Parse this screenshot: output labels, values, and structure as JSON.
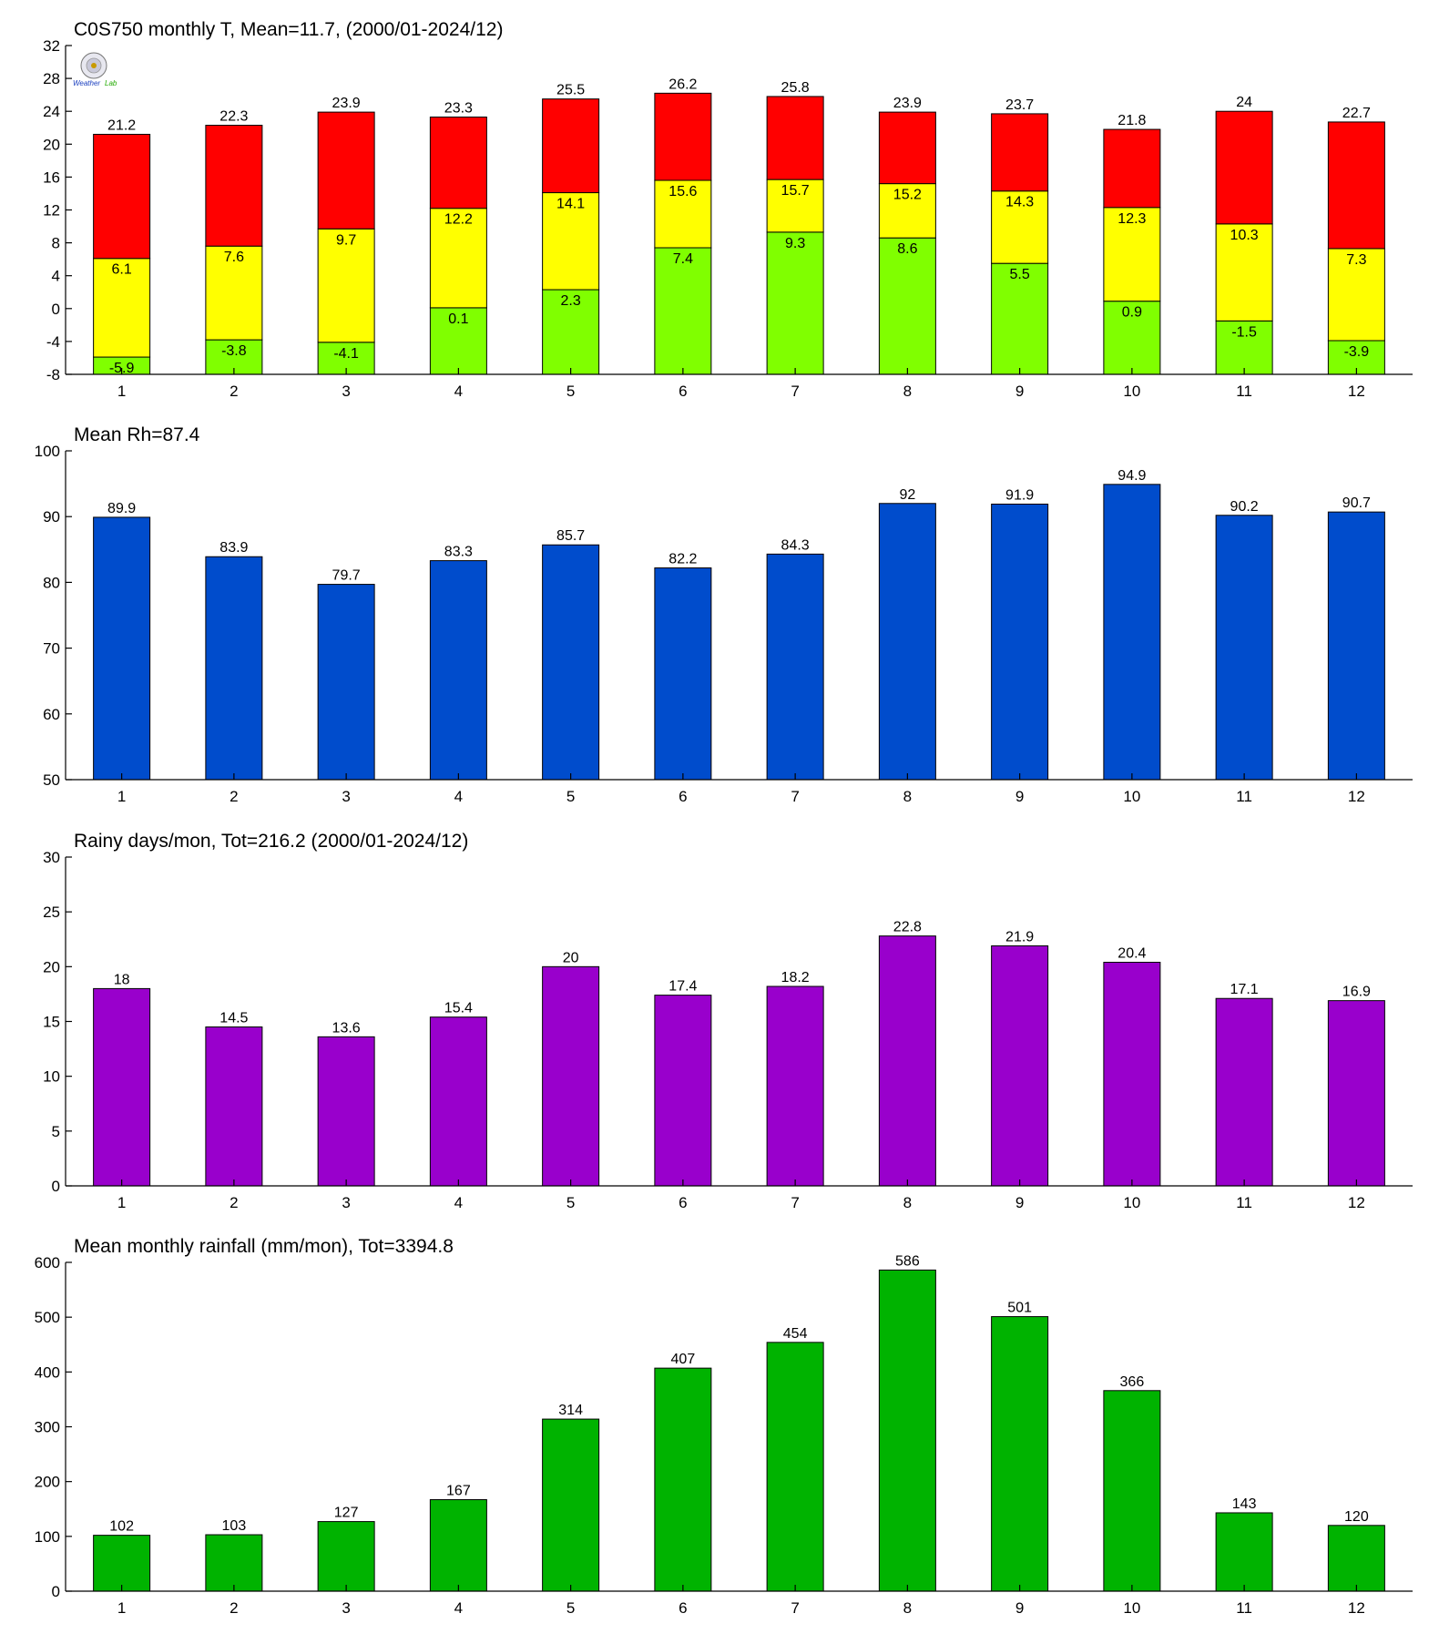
{
  "chart_data": [
    {
      "type": "bar",
      "subtype": "stacked-range",
      "title": "C0S750 monthly T, Mean=11.7, (2000/01-2024/12)",
      "categories": [
        "1",
        "2",
        "3",
        "4",
        "5",
        "6",
        "7",
        "8",
        "9",
        "10",
        "11",
        "12"
      ],
      "ylim": [
        -8,
        32
      ],
      "yticks": [
        -8,
        -4,
        0,
        4,
        8,
        12,
        16,
        20,
        24,
        28,
        32
      ],
      "series": [
        {
          "color": "#80ff00",
          "values": [
            -5.9,
            -3.8,
            -4.1,
            0.1,
            2.3,
            7.4,
            9.3,
            8.6,
            5.5,
            0.9,
            -1.5,
            -3.9
          ]
        },
        {
          "color": "#ffff00",
          "values": [
            6.1,
            7.6,
            9.7,
            12.2,
            14.1,
            15.6,
            15.7,
            15.2,
            14.3,
            12.3,
            10.3,
            7.3
          ]
        },
        {
          "color": "#ff0000",
          "values": [
            21.2,
            22.3,
            23.9,
            23.3,
            25.5,
            26.2,
            25.8,
            23.9,
            23.7,
            21.8,
            24,
            22.7
          ]
        }
      ],
      "labels": {
        "min": [
          "-5.9",
          "-3.8",
          "-4.1",
          "0.1",
          "2.3",
          "7.4",
          "9.3",
          "8.6",
          "5.5",
          "0.9",
          "-1.5",
          "-3.9"
        ],
        "mean": [
          "6.1",
          "7.6",
          "9.7",
          "12.2",
          "14.1",
          "15.6",
          "15.7",
          "15.2",
          "14.3",
          "12.3",
          "10.3",
          "7.3"
        ],
        "max": [
          "21.2",
          "22.3",
          "23.9",
          "23.3",
          "25.5",
          "26.2",
          "25.8",
          "23.9",
          "23.7",
          "21.8",
          "24",
          "22.7"
        ]
      },
      "grid": false,
      "logo": {
        "line1": "Weather",
        "line2": "Lab"
      }
    },
    {
      "type": "bar",
      "title": "Mean Rh=87.4",
      "categories": [
        "1",
        "2",
        "3",
        "4",
        "5",
        "6",
        "7",
        "8",
        "9",
        "10",
        "11",
        "12"
      ],
      "values": [
        89.9,
        83.9,
        79.7,
        83.3,
        85.7,
        82.2,
        84.3,
        92,
        91.9,
        94.9,
        90.2,
        90.7
      ],
      "labels": [
        "89.9",
        "83.9",
        "79.7",
        "83.3",
        "85.7",
        "82.2",
        "84.3",
        "92",
        "91.9",
        "94.9",
        "90.2",
        "90.7"
      ],
      "ylim": [
        50,
        100
      ],
      "yticks": [
        50,
        60,
        70,
        80,
        90,
        100
      ],
      "color": "#004ccc",
      "grid": false
    },
    {
      "type": "bar",
      "title": "Rainy days/mon, Tot=216.2 (2000/01-2024/12)",
      "categories": [
        "1",
        "2",
        "3",
        "4",
        "5",
        "6",
        "7",
        "8",
        "9",
        "10",
        "11",
        "12"
      ],
      "values": [
        18,
        14.5,
        13.6,
        15.4,
        20,
        17.4,
        18.2,
        22.8,
        21.9,
        20.4,
        17.1,
        16.9
      ],
      "labels": [
        "18",
        "14.5",
        "13.6",
        "15.4",
        "20",
        "17.4",
        "18.2",
        "22.8",
        "21.9",
        "20.4",
        "17.1",
        "16.9"
      ],
      "ylim": [
        0,
        30
      ],
      "yticks": [
        0,
        5,
        10,
        15,
        20,
        25,
        30
      ],
      "color": "#9900cc",
      "grid": false
    },
    {
      "type": "bar",
      "title": "Mean monthly rainfall (mm/mon), Tot=3394.8",
      "categories": [
        "1",
        "2",
        "3",
        "4",
        "5",
        "6",
        "7",
        "8",
        "9",
        "10",
        "11",
        "12"
      ],
      "values": [
        102,
        103,
        127,
        167,
        314,
        407,
        454,
        586,
        501,
        366,
        143,
        120
      ],
      "labels": [
        "102",
        "103",
        "127",
        "167",
        "314",
        "407",
        "454",
        "586",
        "501",
        "366",
        "143",
        "120"
      ],
      "ylim": [
        0,
        600
      ],
      "yticks": [
        0,
        100,
        200,
        300,
        400,
        500,
        600
      ],
      "color": "#00b300",
      "grid": false
    }
  ]
}
